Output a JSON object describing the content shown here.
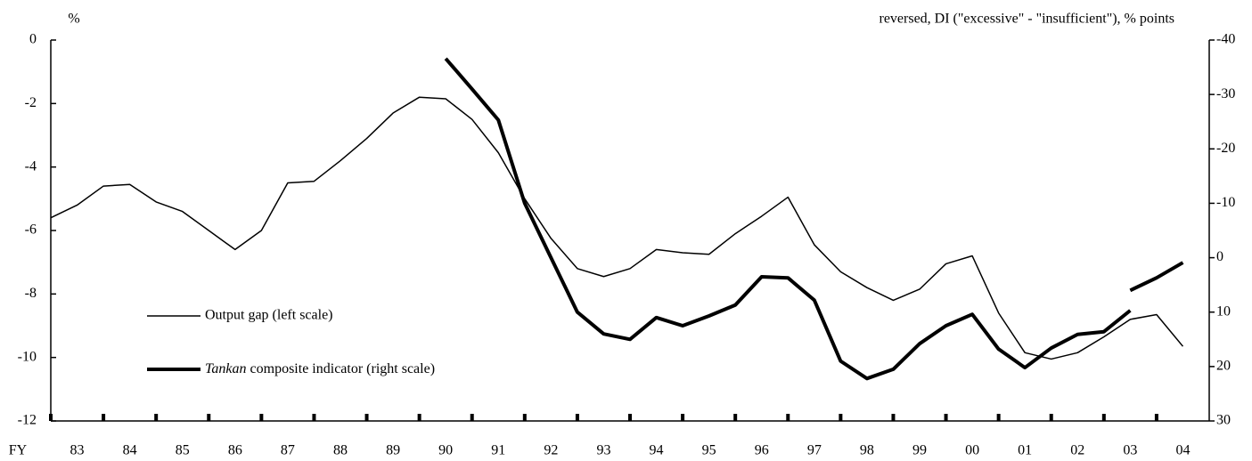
{
  "chart_data": {
    "type": "line",
    "ylabel": "%",
    "y2label": "reversed, DI (\"excessive\" - \"insufficient\"), % points",
    "xlabel": "FY",
    "categories": [
      null,
      "83",
      null,
      "84",
      null,
      "85",
      null,
      "86",
      null,
      "87",
      null,
      "88",
      null,
      "89",
      null,
      "90",
      null,
      "91",
      null,
      "92",
      null,
      "93",
      null,
      "94",
      null,
      "95",
      null,
      "96",
      null,
      "97",
      null,
      "98",
      null,
      "99",
      null,
      "00",
      null,
      "01",
      null,
      "02",
      null,
      "03",
      null,
      "04"
    ],
    "ylim": [
      -12,
      0
    ],
    "yticks": [
      0,
      -2,
      -4,
      -6,
      -8,
      -10,
      -12
    ],
    "y2lim": [
      30,
      -40
    ],
    "y2ticks": [
      -40,
      -30,
      -20,
      -10,
      0,
      10,
      20,
      30
    ],
    "series": [
      {
        "name": "Output gap (left scale)",
        "color": "#000000",
        "values": [
          -5.6,
          -5.2,
          -4.6,
          -4.55,
          -5.1,
          -5.4,
          -6.0,
          -6.6,
          -6.0,
          -4.5,
          -4.45,
          -3.8,
          -3.1,
          -2.3,
          -1.8,
          -1.85,
          -2.5,
          -3.55,
          -5.0,
          -6.25,
          -7.2,
          -7.45,
          -7.2,
          -6.6,
          -6.7,
          -6.75,
          -6.1,
          -5.55,
          -4.95,
          -6.45,
          -7.3,
          -7.8,
          -8.2,
          -7.85,
          -7.05,
          -6.8,
          -8.6,
          -9.85,
          -10.05,
          -9.85,
          -9.35,
          -8.8,
          -8.65,
          -9.65
        ]
      },
      {
        "name": "Tankan composite indicator (right scale)",
        "color": "#000000",
        "axis": "y2",
        "values": [
          null,
          null,
          null,
          null,
          null,
          null,
          null,
          null,
          null,
          null,
          null,
          null,
          null,
          null,
          null,
          -36.6,
          -31,
          -25.3,
          -10,
          0,
          10,
          14,
          15,
          11,
          12.5,
          10.7,
          8.7,
          3.5,
          3.7,
          7.8,
          19,
          22.2,
          20.5,
          15.8,
          12.5,
          10.4,
          16.8,
          20.2,
          16.6,
          14.1,
          13.6,
          9.7,
          null,
          null
        ]
      },
      {
        "name": "Tankan composite indicator (right scale)",
        "color": "#000000",
        "axis": "y2",
        "values": [
          null,
          null,
          null,
          null,
          null,
          null,
          null,
          null,
          null,
          null,
          null,
          null,
          null,
          null,
          null,
          null,
          null,
          null,
          null,
          null,
          null,
          null,
          null,
          null,
          null,
          null,
          null,
          null,
          null,
          null,
          null,
          null,
          null,
          null,
          null,
          null,
          null,
          null,
          null,
          null,
          null,
          6,
          3.7,
          0.9
        ]
      }
    ]
  }
}
